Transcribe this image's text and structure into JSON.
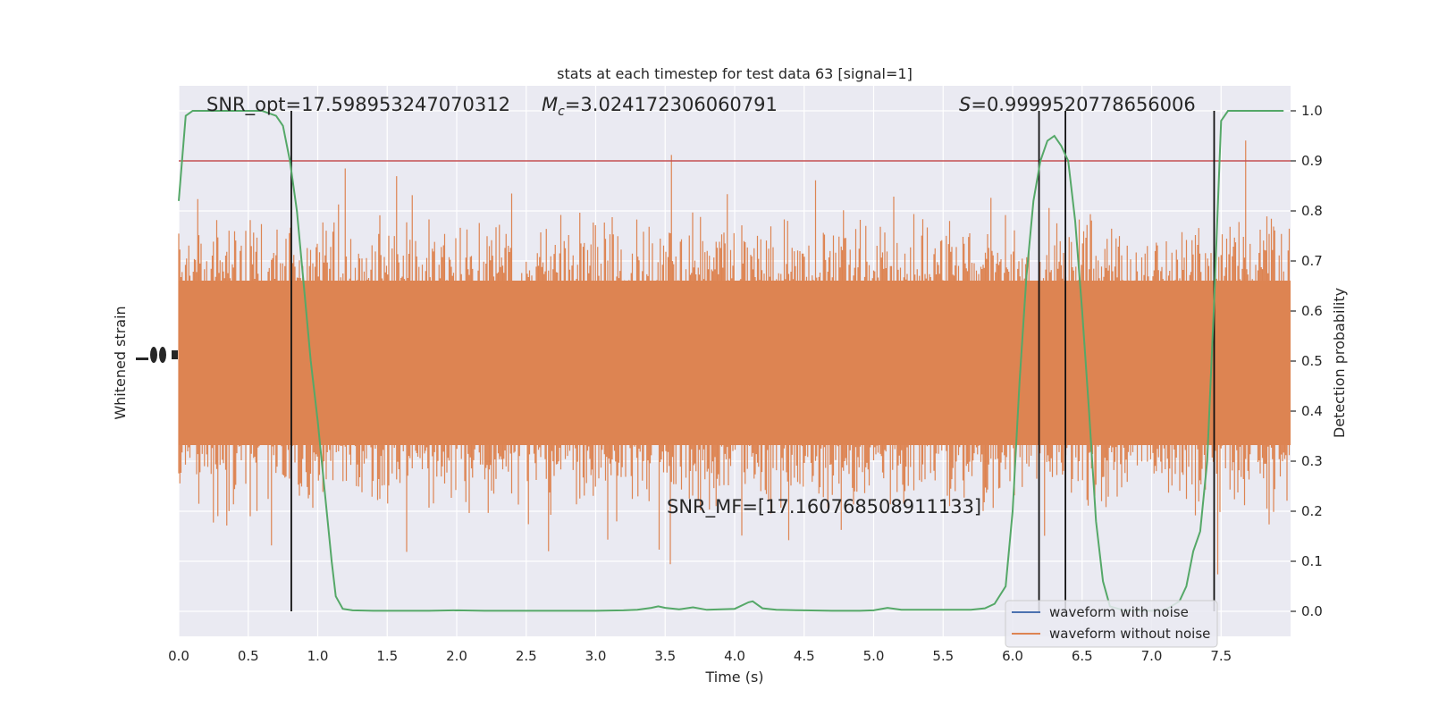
{
  "chart_data": {
    "type": "line",
    "title": "stats at each timestep for test data 63 [signal=1]",
    "xlabel": "Time (s)",
    "ylabel_left": "Whitened strain",
    "ylabel_right": "Detection probability",
    "xlim": [
      0,
      8
    ],
    "ylim_right": [
      -0.05,
      1.05
    ],
    "x_ticks": [
      "0.0",
      "0.5",
      "1.0",
      "1.5",
      "2.0",
      "2.5",
      "3.0",
      "3.5",
      "4.0",
      "4.5",
      "5.0",
      "5.5",
      "6.0",
      "6.5",
      "7.0",
      "7.5"
    ],
    "y_ticks_right": [
      "0.0",
      "0.1",
      "0.2",
      "0.3",
      "0.4",
      "0.5",
      "0.6",
      "0.7",
      "0.8",
      "0.9",
      "1.0"
    ],
    "annotations": {
      "snr_opt": "SNR_opt=17.598953247070312",
      "mc_symbol": "M",
      "mc_subscript": "c",
      "mc_value": "=3.024172306060791",
      "s_symbol": "S",
      "s_value": "=0.9999520778656006",
      "snr_mf": "SNR_MF=[17.160768508911133]"
    },
    "threshold": 0.9,
    "vertical_lines_x": [
      0.81,
      6.19,
      6.38,
      7.45
    ],
    "series": [
      {
        "name": "waveform with noise",
        "color": "#4c72b0"
      },
      {
        "name": "waveform without noise",
        "color": "#dd8452"
      },
      {
        "color": "#55a868",
        "x": [
          0.0,
          0.05,
          0.1,
          0.2,
          0.3,
          0.4,
          0.5,
          0.6,
          0.7,
          0.75,
          0.8,
          0.85,
          0.9,
          0.95,
          1.0,
          1.05,
          1.1,
          1.13,
          1.18,
          1.25,
          1.4,
          1.6,
          1.8,
          2.0,
          2.2,
          2.4,
          2.6,
          2.8,
          3.0,
          3.2,
          3.3,
          3.4,
          3.45,
          3.5,
          3.6,
          3.7,
          3.8,
          3.9,
          4.0,
          4.1,
          4.13,
          4.2,
          4.3,
          4.5,
          4.7,
          4.9,
          5.0,
          5.1,
          5.2,
          5.3,
          5.5,
          5.7,
          5.8,
          5.87,
          5.95,
          6.0,
          6.05,
          6.1,
          6.15,
          6.2,
          6.25,
          6.3,
          6.35,
          6.4,
          6.45,
          6.5,
          6.55,
          6.6,
          6.65,
          6.7,
          6.8,
          6.9,
          7.0,
          7.1,
          7.2,
          7.25,
          7.3,
          7.35,
          7.4,
          7.45,
          7.5,
          7.55,
          7.6,
          7.7,
          7.8,
          7.9,
          7.95
        ],
        "y": [
          0.82,
          0.99,
          1.0,
          1.0,
          1.0,
          1.0,
          1.0,
          1.0,
          0.99,
          0.97,
          0.9,
          0.8,
          0.65,
          0.5,
          0.38,
          0.24,
          0.1,
          0.03,
          0.005,
          0.002,
          0.001,
          0.001,
          0.001,
          0.002,
          0.001,
          0.001,
          0.001,
          0.001,
          0.001,
          0.002,
          0.003,
          0.007,
          0.01,
          0.007,
          0.004,
          0.008,
          0.003,
          0.004,
          0.005,
          0.018,
          0.02,
          0.006,
          0.003,
          0.002,
          0.001,
          0.001,
          0.002,
          0.007,
          0.003,
          0.003,
          0.003,
          0.003,
          0.006,
          0.015,
          0.05,
          0.2,
          0.46,
          0.67,
          0.82,
          0.9,
          0.94,
          0.95,
          0.93,
          0.9,
          0.78,
          0.6,
          0.4,
          0.18,
          0.06,
          0.01,
          0.002,
          0.001,
          0.001,
          0.003,
          0.02,
          0.05,
          0.12,
          0.16,
          0.3,
          0.62,
          0.98,
          1.0,
          1.0,
          1.0,
          1.0,
          1.0,
          1.0
        ]
      }
    ],
    "legend_position": "lower right",
    "grid": true
  }
}
